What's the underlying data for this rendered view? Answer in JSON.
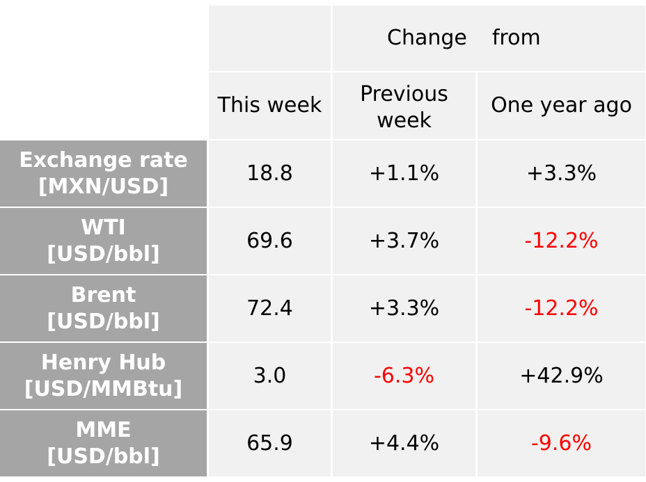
{
  "header": {
    "change": "Change",
    "from": "from",
    "this_week": "This week",
    "previous_week": "Previous\nweek",
    "one_year_ago": "One year ago"
  },
  "rows": [
    {
      "label": "Exchange rate\n[MXN/USD]",
      "this_week": "18.8",
      "prev_week": "+1.1%",
      "year_ago": "+3.3%"
    },
    {
      "label": "WTI\n[USD/bbl]",
      "this_week": "69.6",
      "prev_week": "+3.7%",
      "year_ago": "-12.2%"
    },
    {
      "label": "Brent\n[USD/bbl]",
      "this_week": "72.4",
      "prev_week": "+3.3%",
      "year_ago": "-12.2%"
    },
    {
      "label": "Henry Hub\n[USD/MMBtu]",
      "this_week": "3.0",
      "prev_week": "-6.3%",
      "year_ago": "+42.9%"
    },
    {
      "label": "MME\n[USD/bbl]",
      "this_week": "65.9",
      "prev_week": "+4.4%",
      "year_ago": "-9.6%"
    }
  ],
  "colors": {
    "label_bg": "#a5a5a5",
    "cell_bg": "#f1f1f1",
    "negative": "#ff0000"
  }
}
